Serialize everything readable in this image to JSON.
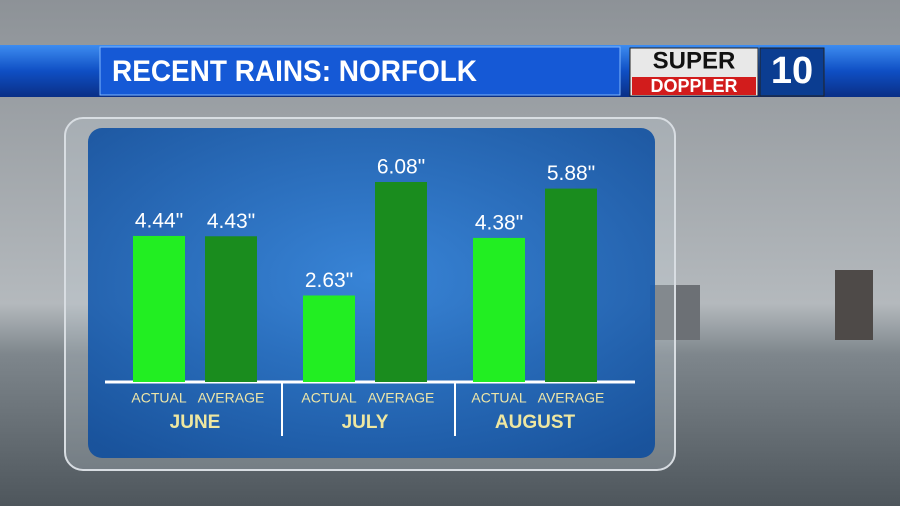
{
  "chart_data": {
    "type": "bar",
    "title": "RECENT RAINS: NORFOLK",
    "logo": {
      "top": "SUPER",
      "bottom": "DOPPLER",
      "number": "10"
    },
    "categories": [
      "JUNE",
      "JULY",
      "AUGUST"
    ],
    "series": [
      {
        "name": "ACTUAL",
        "color": "#22ee22",
        "values": [
          4.44,
          2.63,
          4.38
        ],
        "value_labels": [
          "4.44\"",
          "2.63\"",
          "4.38\""
        ]
      },
      {
        "name": "AVERAGE",
        "color": "#1a8c1e",
        "values": [
          4.43,
          6.08,
          5.88
        ],
        "value_labels": [
          "4.43\"",
          "6.08\"",
          "5.88\""
        ]
      }
    ]
  }
}
